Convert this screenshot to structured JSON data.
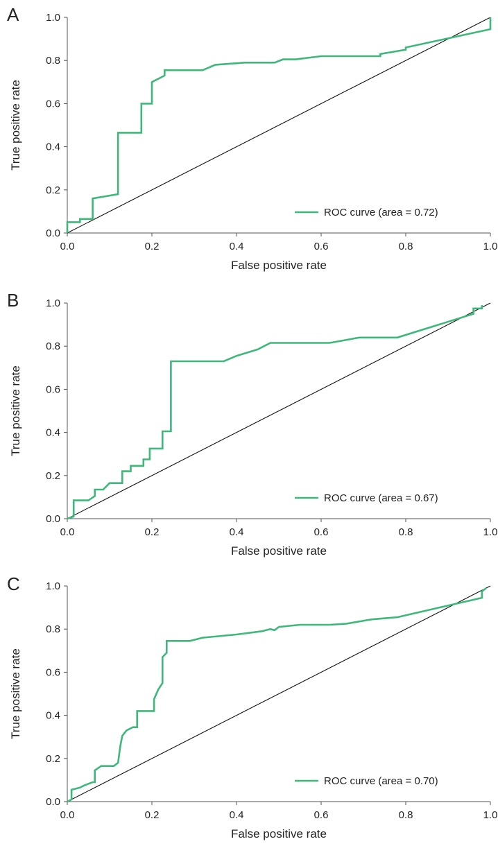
{
  "colors": {
    "roc": "#3db87a",
    "diagonal": "#111111",
    "axis": "#555555"
  },
  "chart_data": [
    {
      "type": "line",
      "panel": "A",
      "xlabel": "False positive rate",
      "ylabel": "True positive rate",
      "xlim": [
        0,
        1
      ],
      "ylim": [
        0,
        1
      ],
      "xticks": [
        "0.0",
        "0.2",
        "0.4",
        "0.6",
        "0.8",
        "1.0"
      ],
      "yticks": [
        "0.0",
        "0.2",
        "0.4",
        "0.6",
        "0.8",
        "1.0"
      ],
      "grid": false,
      "legend_position": "lower-right",
      "series": [
        {
          "name": "ROC curve (area = 0.72)",
          "x": [
            0,
            0,
            0.03,
            0.03,
            0.06,
            0.06,
            0.12,
            0.12,
            0.175,
            0.175,
            0.2,
            0.2,
            0.23,
            0.23,
            0.32,
            0.35,
            0.42,
            0.49,
            0.51,
            0.54,
            0.6,
            0.74,
            0.74,
            0.8,
            0.8,
            1.0,
            1.0
          ],
          "y": [
            0,
            0.05,
            0.05,
            0.065,
            0.065,
            0.16,
            0.18,
            0.465,
            0.465,
            0.6,
            0.6,
            0.7,
            0.73,
            0.755,
            0.755,
            0.78,
            0.79,
            0.79,
            0.805,
            0.805,
            0.82,
            0.82,
            0.83,
            0.85,
            0.86,
            0.945,
            1.0
          ]
        }
      ],
      "reference_line": {
        "x": [
          0,
          1
        ],
        "y": [
          0,
          1
        ]
      }
    },
    {
      "type": "line",
      "panel": "B",
      "xlabel": "False positive rate",
      "ylabel": "True positive rate",
      "xlim": [
        0,
        1
      ],
      "ylim": [
        0,
        1
      ],
      "xticks": [
        "0.0",
        "0.2",
        "0.4",
        "0.6",
        "0.8",
        "1.0"
      ],
      "yticks": [
        "0.0",
        "0.2",
        "0.4",
        "0.6",
        "0.8",
        "1.0"
      ],
      "grid": false,
      "legend_position": "lower-right",
      "series": [
        {
          "name": "ROC curve (area = 0.67)",
          "x": [
            0,
            0.015,
            0.015,
            0.05,
            0.065,
            0.065,
            0.085,
            0.1,
            0.13,
            0.13,
            0.15,
            0.15,
            0.18,
            0.18,
            0.195,
            0.195,
            0.225,
            0.225,
            0.245,
            0.245,
            0.37,
            0.4,
            0.45,
            0.48,
            0.62,
            0.69,
            0.78,
            0.96,
            0.96,
            0.98,
            0.98
          ],
          "y": [
            0,
            0.01,
            0.085,
            0.085,
            0.105,
            0.135,
            0.135,
            0.165,
            0.165,
            0.22,
            0.22,
            0.245,
            0.245,
            0.275,
            0.275,
            0.325,
            0.325,
            0.405,
            0.405,
            0.73,
            0.73,
            0.755,
            0.785,
            0.815,
            0.815,
            0.84,
            0.84,
            0.95,
            0.975,
            0.975,
            0.99
          ]
        }
      ],
      "reference_line": {
        "x": [
          0,
          1
        ],
        "y": [
          0,
          1
        ]
      }
    },
    {
      "type": "line",
      "panel": "C",
      "xlabel": "False positive rate",
      "ylabel": "True positive rate",
      "xlim": [
        0,
        1
      ],
      "ylim": [
        0,
        1
      ],
      "xticks": [
        "0.0",
        "0.2",
        "0.4",
        "0.6",
        "0.8",
        "1.0"
      ],
      "yticks": [
        "0.0",
        "0.2",
        "0.4",
        "0.6",
        "0.8",
        "1.0"
      ],
      "grid": false,
      "legend_position": "lower-right",
      "series": [
        {
          "name": "ROC curve (area = 0.70)",
          "x": [
            0,
            0.01,
            0.01,
            0.03,
            0.04,
            0.06,
            0.065,
            0.065,
            0.08,
            0.11,
            0.12,
            0.125,
            0.13,
            0.14,
            0.155,
            0.165,
            0.165,
            0.205,
            0.205,
            0.215,
            0.225,
            0.225,
            0.235,
            0.235,
            0.29,
            0.32,
            0.4,
            0.46,
            0.48,
            0.49,
            0.5,
            0.55,
            0.62,
            0.66,
            0.72,
            0.78,
            0.98,
            0.98,
            0.99
          ],
          "y": [
            0,
            0.01,
            0.055,
            0.065,
            0.075,
            0.09,
            0.09,
            0.145,
            0.165,
            0.165,
            0.18,
            0.255,
            0.305,
            0.33,
            0.345,
            0.345,
            0.42,
            0.42,
            0.475,
            0.52,
            0.55,
            0.67,
            0.69,
            0.745,
            0.745,
            0.76,
            0.775,
            0.79,
            0.8,
            0.795,
            0.81,
            0.82,
            0.82,
            0.825,
            0.845,
            0.855,
            0.945,
            0.975,
            0.99
          ]
        }
      ],
      "reference_line": {
        "x": [
          0,
          1
        ],
        "y": [
          0,
          1
        ]
      }
    }
  ]
}
